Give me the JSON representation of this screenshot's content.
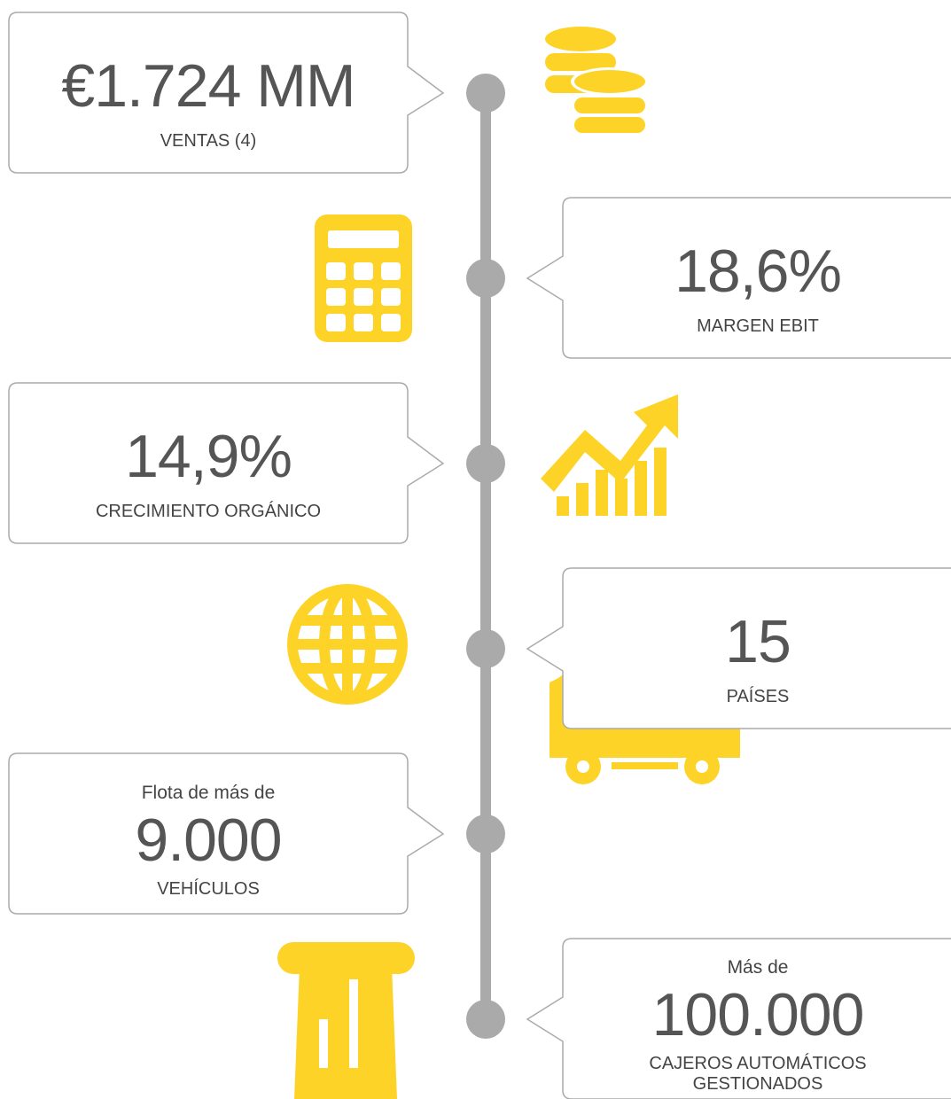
{
  "items": [
    {
      "value": "€1.724 MM",
      "label": "VENTAS (4)"
    },
    {
      "value": "18,6%",
      "label": "MARGEN EBIT"
    },
    {
      "value": "14,9%",
      "label": "CRECIMIENTO ORGÁNICO"
    },
    {
      "value": "15",
      "label": "PAÍSES"
    },
    {
      "pre": "Flota de más de",
      "value": "9.000",
      "label": "VEHÍCULOS"
    },
    {
      "pre": "Más de",
      "value": "100.000",
      "label": [
        "CAJEROS AUTOMÁTICOS",
        "GESTIONADOS"
      ]
    }
  ]
}
